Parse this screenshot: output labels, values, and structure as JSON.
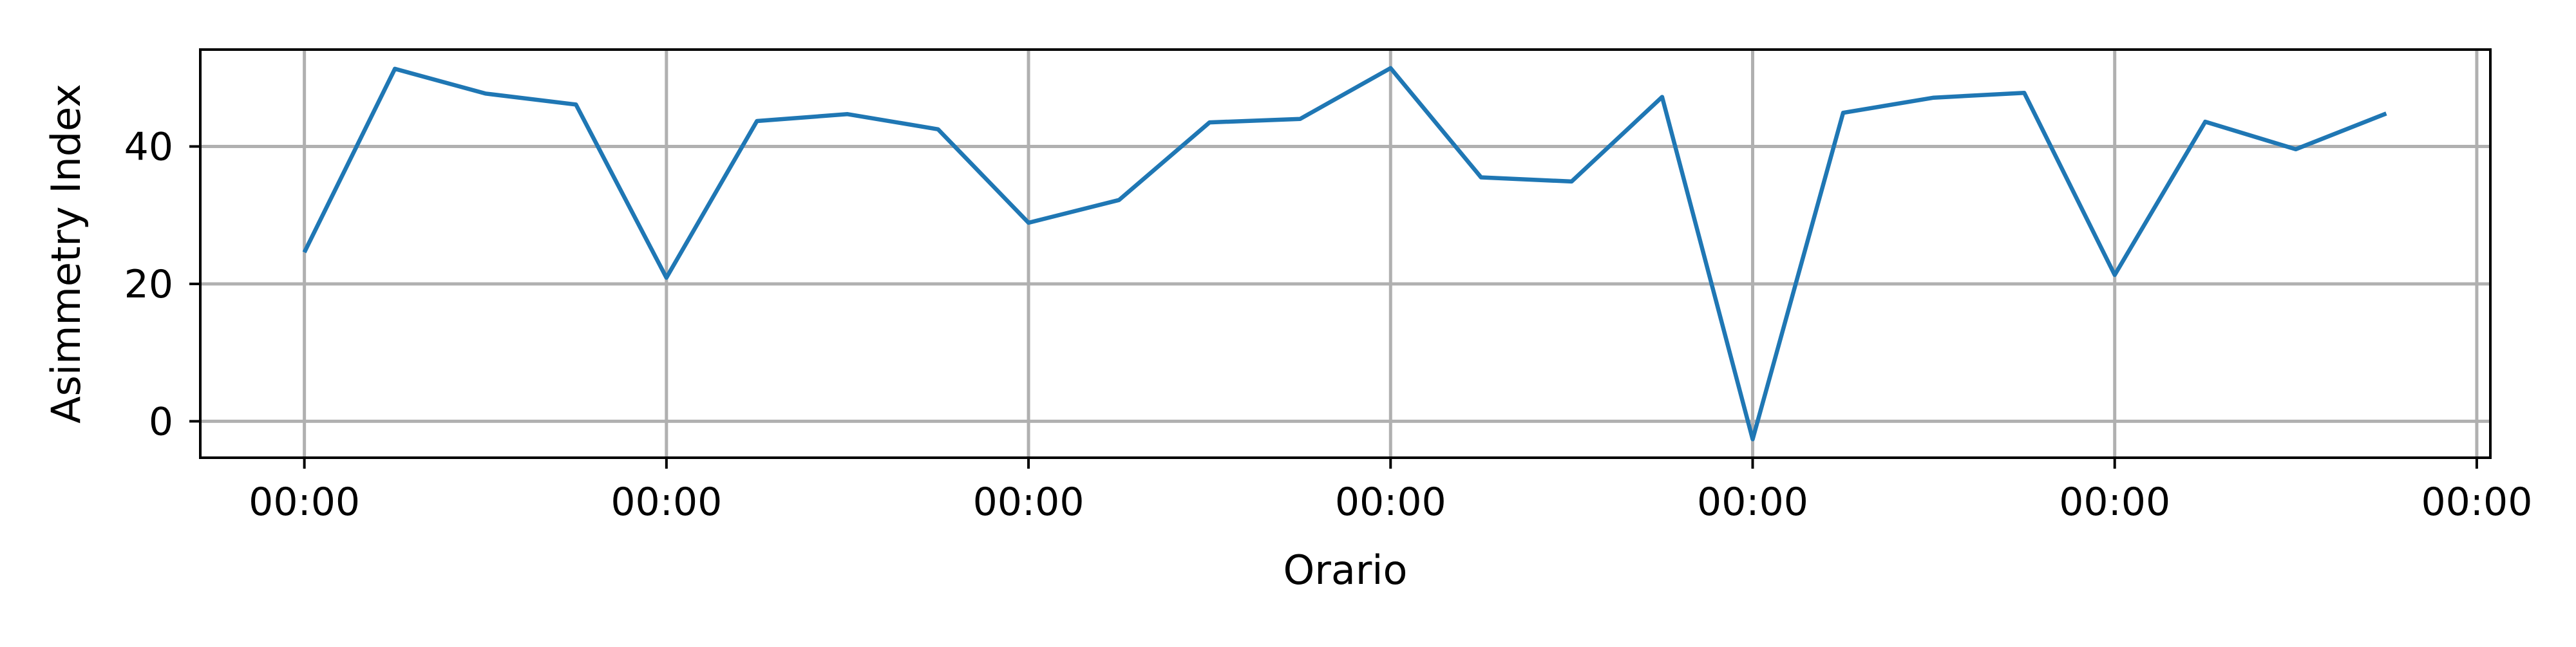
{
  "chart_data": {
    "type": "line",
    "title": "",
    "xlabel": "Orario",
    "ylabel": "Asimmetry Index",
    "x": [
      0,
      1,
      2,
      3,
      4,
      5,
      6,
      7,
      8,
      9,
      10,
      11,
      12,
      13,
      14,
      15,
      16,
      17,
      18,
      19,
      20,
      21,
      22,
      23,
      24
    ],
    "x_ticks": [
      0,
      4,
      8,
      12,
      16,
      20,
      24
    ],
    "x_tick_labels": [
      "00:00",
      "00:00",
      "00:00",
      "00:00",
      "00:00",
      "00:00",
      "00:00"
    ],
    "xlim": [
      -1.15,
      24.15
    ],
    "y_ticks": [
      0,
      20,
      40
    ],
    "y_tick_labels": [
      "0",
      "20",
      "40"
    ],
    "ylim": [
      -5.3,
      54.1
    ],
    "grid": true,
    "series": [
      {
        "color": "#1f77b4",
        "values": [
          24.6,
          51.3,
          47.7,
          46.1,
          20.9,
          43.7,
          44.7,
          42.5,
          28.9,
          32.2,
          43.5,
          44.0,
          51.4,
          35.5,
          34.9,
          47.2,
          -2.6,
          44.9,
          47.1,
          47.8,
          21.3,
          43.6,
          39.6,
          44.8,
          null
        ]
      }
    ]
  }
}
